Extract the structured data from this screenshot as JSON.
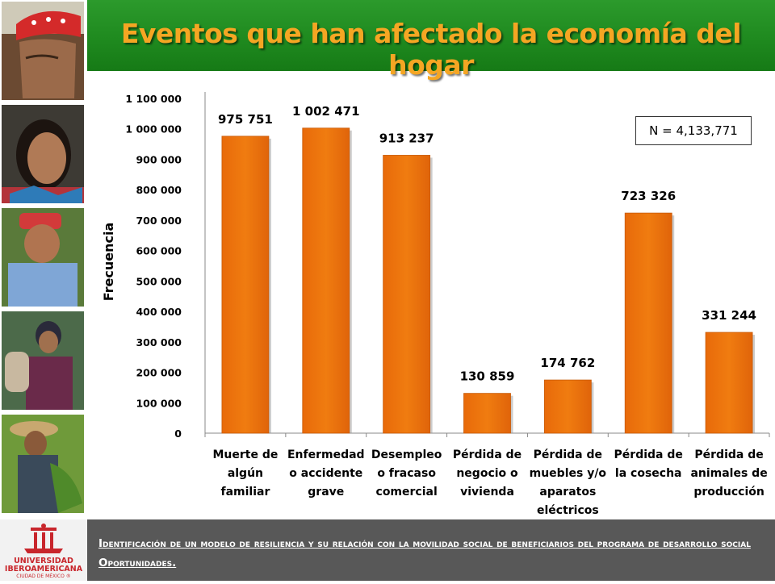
{
  "header": {
    "title": "Eventos que han afectado la economía del hogar"
  },
  "chart_data": {
    "type": "bar",
    "ylabel": "Frecuencia",
    "ylim": [
      0,
      1100000
    ],
    "yticks": [
      "0",
      "100 000",
      "200 000",
      "300 000",
      "400 000",
      "500 000",
      "600 000",
      "700 000",
      "800 000",
      "900 000",
      "1 000 000",
      "1 100 000"
    ],
    "categories": [
      [
        "Muerte de",
        "algún",
        "familiar"
      ],
      [
        "Enfermedad",
        "o accidente",
        "grave"
      ],
      [
        "Desempleo",
        "o fracaso",
        "comercial"
      ],
      [
        "Pérdida de",
        "negocio o",
        "vivienda"
      ],
      [
        "Pérdida de",
        "muebles y/o",
        "aparatos",
        "eléctricos"
      ],
      [
        "Pérdida de",
        "la cosecha"
      ],
      [
        "Pérdida de",
        "animales de",
        "producción"
      ]
    ],
    "values": [
      975751,
      1002471,
      913237,
      130859,
      174762,
      723326,
      331244
    ],
    "value_labels": [
      "975 751",
      "1 002 471",
      "913 237",
      "130 859",
      "174 762",
      "723 326",
      "331 244"
    ],
    "annotation": "N = 4,133,771",
    "bar_color": "#f07c10"
  },
  "footer": {
    "text": "Identificación de un modelo de resiliencia y su relación con la movilidad social de beneficiarios del programa de desarrollo social Oportunidades.",
    "logo_text": [
      "UNIVERSIDAD",
      "IBEROAMERICANA",
      "CIUDAD DE MÉXICO ®"
    ]
  }
}
